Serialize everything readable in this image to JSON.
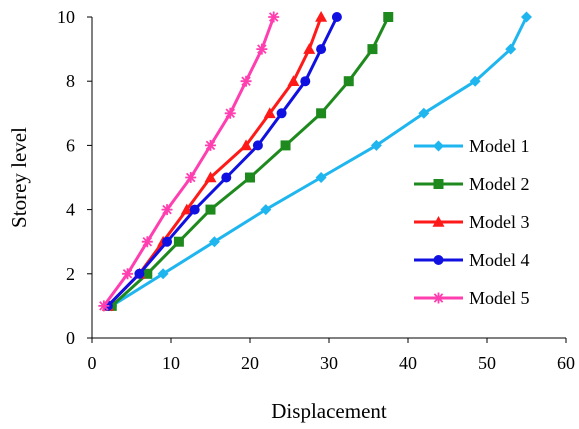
{
  "chart_data": {
    "type": "line",
    "xlabel": "Displacement",
    "ylabel": "Storey level",
    "xlim": [
      0,
      60
    ],
    "ylim": [
      0,
      10
    ],
    "xticks": [
      0,
      10,
      20,
      30,
      40,
      50,
      60
    ],
    "yticks": [
      0,
      2,
      4,
      6,
      8,
      10
    ],
    "grid": false,
    "legend_position": "right",
    "series": [
      {
        "name": "Model 1",
        "color": "#1FB6F0",
        "marker": "diamond",
        "points": [
          [
            2.5,
            1
          ],
          [
            9,
            2
          ],
          [
            15.5,
            3
          ],
          [
            22,
            4
          ],
          [
            29,
            5
          ],
          [
            36,
            6
          ],
          [
            42,
            7
          ],
          [
            48.5,
            8
          ],
          [
            53,
            9
          ],
          [
            55,
            10
          ]
        ]
      },
      {
        "name": "Model 2",
        "color": "#1E8A1E",
        "marker": "square",
        "points": [
          [
            2.5,
            1
          ],
          [
            7,
            2
          ],
          [
            11,
            3
          ],
          [
            15,
            4
          ],
          [
            20,
            5
          ],
          [
            24.5,
            6
          ],
          [
            29,
            7
          ],
          [
            32.5,
            8
          ],
          [
            35.5,
            9
          ],
          [
            37.5,
            10
          ]
        ]
      },
      {
        "name": "Model 3",
        "color": "#FF1A1A",
        "marker": "triangle",
        "points": [
          [
            2,
            1
          ],
          [
            6,
            2
          ],
          [
            9,
            3
          ],
          [
            12,
            4
          ],
          [
            15,
            5
          ],
          [
            19.5,
            6
          ],
          [
            22.5,
            7
          ],
          [
            25.5,
            8
          ],
          [
            27.5,
            9
          ],
          [
            29,
            10
          ]
        ]
      },
      {
        "name": "Model 4",
        "color": "#1010E0",
        "marker": "circle",
        "points": [
          [
            2,
            1
          ],
          [
            6,
            2
          ],
          [
            9.5,
            3
          ],
          [
            13,
            4
          ],
          [
            17,
            5
          ],
          [
            21,
            6
          ],
          [
            24,
            7
          ],
          [
            27,
            8
          ],
          [
            29,
            9
          ],
          [
            31,
            10
          ]
        ]
      },
      {
        "name": "Model 5",
        "color": "#FF3FB0",
        "marker": "star",
        "points": [
          [
            1.5,
            1
          ],
          [
            4.5,
            2
          ],
          [
            7,
            3
          ],
          [
            9.5,
            4
          ],
          [
            12.5,
            5
          ],
          [
            15,
            6
          ],
          [
            17.5,
            7
          ],
          [
            19.5,
            8
          ],
          [
            21.5,
            9
          ],
          [
            23,
            10
          ]
        ]
      }
    ]
  }
}
